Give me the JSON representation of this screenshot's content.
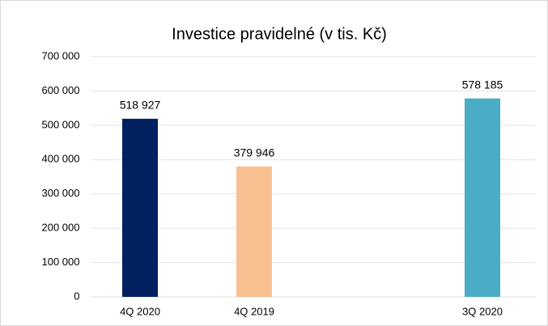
{
  "chart_data": {
    "type": "bar",
    "title": "Investice pravidelné (v tis. Kč)",
    "categories": [
      "4Q 2020",
      "4Q 2019",
      null,
      "3Q 2020"
    ],
    "values": [
      518927,
      379946,
      null,
      578185
    ],
    "value_labels": [
      "518 927",
      "379 946",
      null,
      "578 185"
    ],
    "colors": [
      "#002060",
      "#f8c090",
      null,
      "#4bacc6"
    ],
    "ylim": [
      0,
      700000
    ],
    "yticks": [
      0,
      {
        "value": 100000,
        "label": "100 000"
      },
      {
        "value": 200000,
        "label": "200 000"
      },
      {
        "value": 300000,
        "label": "300 000"
      },
      {
        "value": 400000,
        "label": "400 000"
      },
      {
        "value": 500000,
        "label": "500 000"
      },
      {
        "value": 600000,
        "label": "600 000"
      },
      {
        "value": 700000,
        "label": "700 000"
      }
    ],
    "grid": true
  }
}
